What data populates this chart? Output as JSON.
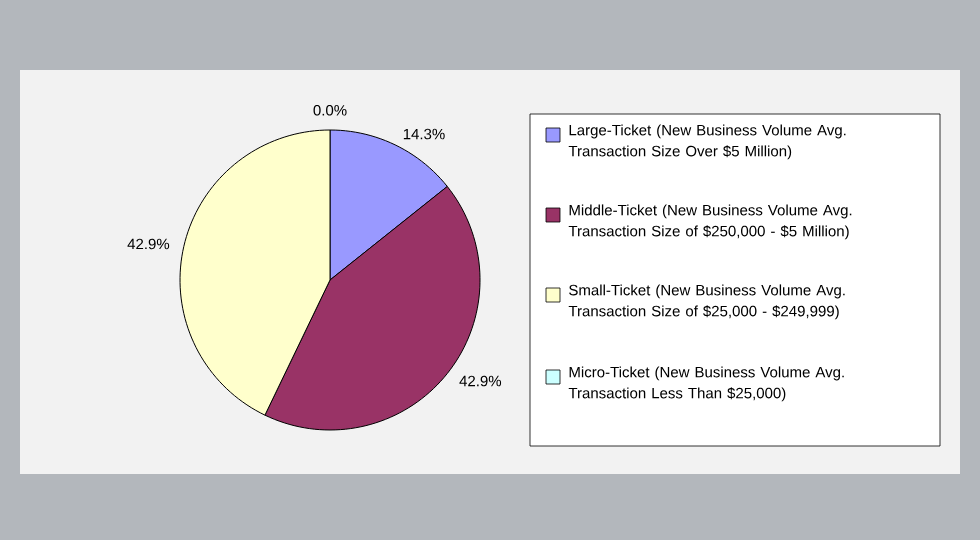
{
  "chart_data": {
    "type": "pie",
    "categories": [
      "Large-Ticket (New Business Volume Avg. Transaction Size Over $5 Million)",
      "Middle-Ticket (New Business Volume Avg. Transaction Size of $250,000 - $5 Million)",
      "Small-Ticket (New Business Volume Avg. Transaction Size of $25,000 - $249,999)",
      "Micro-Ticket (New Business Volume Avg. Transaction Less Than $25,000)"
    ],
    "values": [
      14.3,
      42.9,
      42.9,
      0.0
    ],
    "value_labels": [
      "14.3%",
      "42.9%",
      "42.9%",
      "0.0%"
    ],
    "colors": [
      "#9999ff",
      "#993366",
      "#ffffcc",
      "#ccffff"
    ],
    "legend": "right"
  }
}
